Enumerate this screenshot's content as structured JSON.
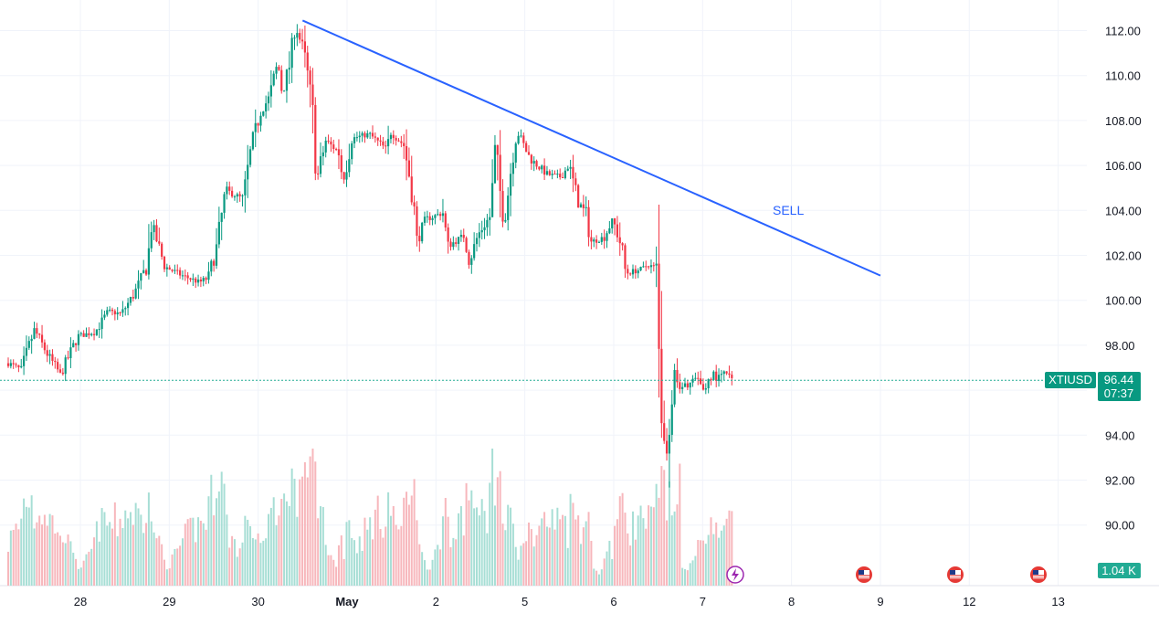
{
  "chart_data": {
    "type": "candlestick",
    "symbol": "XTIUSD",
    "last_price": "96.44",
    "countdown": "07:37",
    "volume_label": "1.04 K",
    "annotation": "SELL",
    "y_ticks": [
      "112.00",
      "110.00",
      "108.00",
      "106.00",
      "104.00",
      "102.00",
      "100.00",
      "98.00",
      "96.00",
      "94.00",
      "92.00",
      "90.00"
    ],
    "x_ticks": [
      {
        "label": "28",
        "day": 28,
        "bold": false
      },
      {
        "label": "29",
        "day": 29,
        "bold": false
      },
      {
        "label": "30",
        "day": 30,
        "bold": false
      },
      {
        "label": "May",
        "day": 31,
        "bold": true
      },
      {
        "label": "2",
        "day": 32,
        "bold": false
      },
      {
        "label": "5",
        "day": 33,
        "bold": false
      },
      {
        "label": "6",
        "day": 34,
        "bold": false
      },
      {
        "label": "7",
        "day": 35,
        "bold": false
      },
      {
        "label": "8",
        "day": 36,
        "bold": false
      },
      {
        "label": "9",
        "day": 37,
        "bold": false
      },
      {
        "label": "12",
        "day": 38,
        "bold": false
      },
      {
        "label": "13",
        "day": 39,
        "bold": false
      }
    ],
    "ylim": [
      89.0,
      112.6
    ],
    "price_path": [
      [
        27.2,
        97.2
      ],
      [
        27.35,
        96.9
      ],
      [
        27.5,
        98.7
      ],
      [
        27.65,
        97.6
      ],
      [
        27.8,
        96.7
      ],
      [
        28.0,
        98.4
      ],
      [
        28.2,
        98.6
      ],
      [
        28.35,
        99.5
      ],
      [
        28.5,
        99.4
      ],
      [
        28.65,
        100.3
      ],
      [
        28.8,
        101.6
      ],
      [
        28.85,
        103.4
      ],
      [
        29.0,
        101.5
      ],
      [
        29.2,
        101.1
      ],
      [
        29.4,
        100.8
      ],
      [
        29.5,
        101.0
      ],
      [
        29.6,
        102.4
      ],
      [
        29.7,
        104.9
      ],
      [
        29.9,
        104.5
      ],
      [
        30.0,
        106.9
      ],
      [
        30.1,
        108.4
      ],
      [
        30.2,
        109.0
      ],
      [
        30.3,
        110.6
      ],
      [
        30.35,
        109.2
      ],
      [
        30.45,
        110.7
      ],
      [
        30.5,
        112.3
      ],
      [
        30.6,
        111.0
      ],
      [
        30.65,
        109.8
      ],
      [
        30.7,
        108.2
      ],
      [
        30.75,
        105.4
      ],
      [
        30.85,
        107.1
      ],
      [
        31.0,
        106.6
      ],
      [
        31.05,
        105.3
      ],
      [
        31.15,
        107.2
      ],
      [
        31.35,
        107.4
      ],
      [
        31.55,
        106.7
      ],
      [
        31.6,
        107.5
      ],
      [
        31.75,
        106.9
      ],
      [
        31.85,
        104.7
      ],
      [
        31.9,
        102.6
      ],
      [
        32.0,
        103.6
      ],
      [
        32.2,
        103.9
      ],
      [
        32.25,
        102.4
      ],
      [
        32.45,
        102.9
      ],
      [
        32.5,
        101.7
      ],
      [
        32.6,
        102.9
      ],
      [
        32.75,
        103.8
      ],
      [
        32.8,
        106.9
      ],
      [
        32.85,
        105.0
      ],
      [
        32.9,
        103.4
      ],
      [
        33.0,
        106.5
      ],
      [
        33.05,
        107.5
      ],
      [
        33.2,
        106.3
      ],
      [
        33.4,
        105.6
      ],
      [
        33.55,
        105.5
      ],
      [
        33.65,
        106.0
      ],
      [
        33.75,
        104.4
      ],
      [
        33.85,
        103.8
      ],
      [
        33.9,
        102.6
      ],
      [
        34.05,
        102.8
      ],
      [
        34.15,
        103.6
      ],
      [
        34.25,
        102.4
      ],
      [
        34.3,
        101.2
      ],
      [
        34.4,
        101.3
      ],
      [
        34.5,
        101.4
      ],
      [
        34.55,
        101.6
      ],
      [
        34.65,
        101.4
      ],
      [
        34.7,
        97.6
      ],
      [
        34.72,
        94.6
      ],
      [
        34.75,
        93.0
      ],
      [
        34.8,
        94.4
      ],
      [
        34.85,
        97.2
      ],
      [
        34.9,
        96.4
      ],
      [
        34.95,
        96.1
      ],
      [
        35.1,
        96.5
      ],
      [
        35.2,
        96.0
      ],
      [
        35.3,
        96.8
      ],
      [
        35.35,
        96.5
      ],
      [
        35.45,
        96.8
      ],
      [
        35.52,
        96.44
      ]
    ],
    "trendline": {
      "start": [
        30.5,
        112.45
      ],
      "end": [
        37.0,
        101.1
      ]
    },
    "grid": true
  }
}
